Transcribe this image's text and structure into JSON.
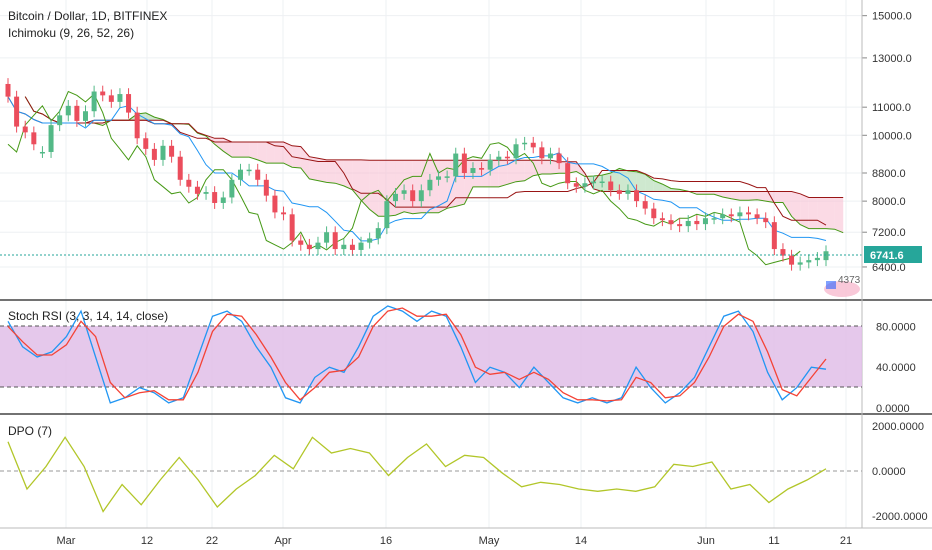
{
  "header": {
    "title": "Bitcoin / Dollar, 1D, BITFINEX",
    "indicator": "Ichimoku (9, 26, 52, 26)"
  },
  "colors": {
    "up": "#53b987",
    "down": "#eb4d5c",
    "conversion": "#2196f3",
    "base": "#991515",
    "lagging": "#459915",
    "cloud_bull": "#a5d6a7",
    "cloud_bear": "#f8bbd0",
    "stoch_k": "#2196f3",
    "stoch_d": "#f44336",
    "stoch_band": "#e1bee7",
    "dpo": "#b2c629",
    "price_tag": "#26a69a"
  },
  "price_tag": "6741.6",
  "logo_text": "4373",
  "chart_data": [
    {
      "type": "candlestick",
      "title": "Bitcoin / Dollar, 1D, BITFINEX",
      "ylim": [
        5800,
        15500
      ],
      "yscale": "log",
      "y_ticks": [
        {
          "label": "15000.0",
          "value": 15000
        },
        {
          "label": "13000.0",
          "value": 13000
        },
        {
          "label": "11000.0",
          "value": 11000
        },
        {
          "label": "10000.0",
          "value": 10000
        },
        {
          "label": "8800.0",
          "value": 8800
        },
        {
          "label": "8000.0",
          "value": 8000
        },
        {
          "label": "7200.0",
          "value": 7200
        },
        {
          "label": "6400.0",
          "value": 6400
        }
      ],
      "last_price": 6741.6,
      "closes": [
        11400,
        10300,
        10100,
        9700,
        9450,
        10350,
        10700,
        11050,
        10500,
        10850,
        11600,
        11450,
        11200,
        11500,
        10800,
        9900,
        9550,
        9200,
        9650,
        9300,
        8600,
        8400,
        8200,
        8250,
        7950,
        8100,
        8600,
        8900,
        8900,
        8600,
        8150,
        7700,
        7650,
        7000,
        6900,
        6800,
        6950,
        7200,
        6800,
        6900,
        6780,
        6950,
        7050,
        7300,
        8000,
        8200,
        8300,
        8000,
        8300,
        8600,
        8700,
        8700,
        9400,
        8800,
        8950,
        8900,
        9200,
        9300,
        9250,
        9700,
        9750,
        9600,
        9250,
        9400,
        9100,
        8500,
        8400,
        8500,
        8550,
        8550,
        8300,
        8200,
        8300,
        8000,
        7800,
        7550,
        7500,
        7400,
        7350,
        7480,
        7400,
        7550,
        7550,
        7650,
        7600,
        7700,
        7650,
        7550,
        7450,
        6800,
        6650,
        6450,
        6500,
        6550,
        6600,
        6750
      ],
      "opens": [
        11900,
        11400,
        10300,
        10100,
        9450,
        9450,
        10350,
        10700,
        11050,
        10500,
        10850,
        11600,
        11450,
        11200,
        11500,
        10800,
        9900,
        9550,
        9200,
        9650,
        9300,
        8600,
        8400,
        8200,
        8250,
        7950,
        8100,
        8600,
        8900,
        8900,
        8600,
        8150,
        7700,
        7650,
        7000,
        6900,
        6800,
        6950,
        7200,
        6800,
        6900,
        6780,
        6950,
        7050,
        7300,
        8000,
        8200,
        8300,
        8000,
        8300,
        8600,
        8700,
        8700,
        9400,
        8800,
        8950,
        8900,
        9200,
        9300,
        9250,
        9700,
        9750,
        9600,
        9250,
        9400,
        9100,
        8500,
        8400,
        8500,
        8550,
        8550,
        8300,
        8200,
        8300,
        8000,
        7800,
        7550,
        7500,
        7400,
        7350,
        7480,
        7400,
        7550,
        7550,
        7650,
        7600,
        7700,
        7650,
        7550,
        7450,
        6800,
        6650,
        6450,
        6500,
        6550,
        6550
      ]
    },
    {
      "type": "line",
      "title": "Stoch RSI (3, 3, 14, 14, close)",
      "ylim": [
        0,
        100
      ],
      "y_ticks": [
        "80.0000",
        "40.0000",
        "0.0000"
      ],
      "bands": [
        20,
        80
      ],
      "series": [
        {
          "name": "K",
          "values": [
            85,
            60,
            50,
            55,
            70,
            95,
            50,
            5,
            10,
            20,
            15,
            5,
            10,
            50,
            90,
            95,
            85,
            60,
            40,
            10,
            5,
            30,
            40,
            35,
            60,
            90,
            100,
            95,
            85,
            95,
            90,
            60,
            25,
            40,
            35,
            20,
            40,
            25,
            10,
            5,
            10,
            5,
            10,
            40,
            20,
            5,
            15,
            30,
            60,
            90,
            95,
            75,
            35,
            8,
            20,
            40,
            38
          ]
        },
        {
          "name": "D",
          "values": [
            80,
            65,
            52,
            52,
            62,
            85,
            70,
            25,
            10,
            15,
            17,
            8,
            8,
            35,
            75,
            92,
            90,
            72,
            50,
            25,
            8,
            20,
            35,
            37,
            50,
            80,
            95,
            98,
            90,
            90,
            92,
            72,
            40,
            33,
            35,
            28,
            35,
            28,
            15,
            8,
            8,
            7,
            8,
            30,
            25,
            10,
            12,
            25,
            50,
            80,
            92,
            85,
            55,
            18,
            12,
            30,
            48
          ]
        }
      ]
    },
    {
      "type": "line",
      "title": "DPO (7)",
      "ylim": [
        -2400,
        2400
      ],
      "y_ticks": [
        "2000.0000",
        "0.0000",
        "-2000.0000"
      ],
      "series": [
        {
          "name": "DPO",
          "values": [
            1300,
            -800,
            200,
            1500,
            200,
            -1800,
            -600,
            -1500,
            -400,
            600,
            -400,
            -1600,
            -800,
            -200,
            700,
            100,
            1500,
            800,
            1000,
            800,
            -200,
            600,
            1200,
            200,
            700,
            600,
            -100,
            -700,
            -500,
            -600,
            -800,
            -900,
            -800,
            -900,
            -700,
            300,
            200,
            400,
            -800,
            -600,
            -1400,
            -800,
            -400,
            100
          ]
        }
      ]
    }
  ],
  "x_axis": {
    "labels": [
      "Mar",
      "12",
      "22",
      "Apr",
      "16",
      "May",
      "14",
      "Jun",
      "11",
      "21"
    ]
  }
}
